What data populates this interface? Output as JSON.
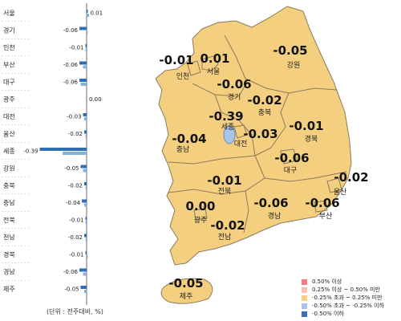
{
  "chart_data": [
    {
      "type": "bar",
      "orientation": "horizontal",
      "title": "",
      "categories": [
        "서울",
        "경기",
        "인천",
        "부산",
        "대구",
        "광주",
        "대전",
        "울산",
        "세종",
        "강원",
        "충북",
        "충남",
        "전북",
        "전남",
        "경북",
        "경남",
        "제주"
      ],
      "series": [
        {
          "values": [
            0.01,
            -0.06,
            -0.01,
            -0.06,
            -0.06,
            0.0,
            -0.03,
            -0.02,
            -0.39,
            -0.05,
            -0.02,
            -0.04,
            -0.01,
            -0.02,
            -0.01,
            -0.06,
            -0.05
          ]
        },
        {
          "values": [
            0.02,
            0.01,
            -0.01,
            -0.03,
            -0.05,
            0.0,
            -0.02,
            -0.01,
            -0.2,
            -0.03,
            -0.01,
            -0.02,
            -0.01,
            -0.01,
            0.01,
            -0.03,
            -0.02
          ]
        }
      ],
      "labels": [
        "0.01",
        "-0.06",
        "-0.01",
        "-0.06",
        "-0.06",
        "0.00",
        "-0.03",
        "-0.02",
        "-0.39",
        "-0.05",
        "-0.02",
        "-0.04",
        "-0.01",
        "-0.02",
        "-0.01",
        "-0.06",
        "-0.05"
      ],
      "unit_note": "(단위 : 전주대비, %)",
      "grid": false
    },
    {
      "type": "choropleth",
      "regions": [
        {
          "name": "서울",
          "value": "0.01"
        },
        {
          "name": "인천",
          "value": "-0.01"
        },
        {
          "name": "경기",
          "value": "-0.06"
        },
        {
          "name": "강원",
          "value": "-0.05"
        },
        {
          "name": "충북",
          "value": "-0.02"
        },
        {
          "name": "세종",
          "value": "-0.39"
        },
        {
          "name": "대전",
          "value": "-0.03"
        },
        {
          "name": "충남",
          "value": "-0.04"
        },
        {
          "name": "경북",
          "value": "-0.01"
        },
        {
          "name": "대구",
          "value": "-0.06"
        },
        {
          "name": "울산",
          "value": "-0.02"
        },
        {
          "name": "전북",
          "value": "-0.01"
        },
        {
          "name": "광주",
          "value": "0.00"
        },
        {
          "name": "전남",
          "value": "-0.02"
        },
        {
          "name": "경남",
          "value": "-0.06"
        },
        {
          "name": "부산",
          "value": "-0.06"
        },
        {
          "name": "제주",
          "value": "-0.05"
        }
      ],
      "legend": [
        {
          "label": "0.50% 이상",
          "color": "#f08080"
        },
        {
          "label": "0.25% 이상 ~ 0.50% 미만",
          "color": "#f7c0b3"
        },
        {
          "label": "-0.25% 초과 ~ 0.25% 미만",
          "color": "#f5cf80"
        },
        {
          "label": "-0.50% 초과 ~ -0.25% 이하",
          "color": "#a9c4e8"
        },
        {
          "label": "-0.50% 이하",
          "color": "#3a6fb0"
        }
      ],
      "legend_position": "bottom-right"
    }
  ],
  "colors": {
    "bar_primary": "#2f6db5",
    "bar_secondary": "#7fb3e0",
    "map_fill": "#f5cf80",
    "map_stroke": "#8a7a5a",
    "sejong_fill": "#a9c4e8"
  }
}
